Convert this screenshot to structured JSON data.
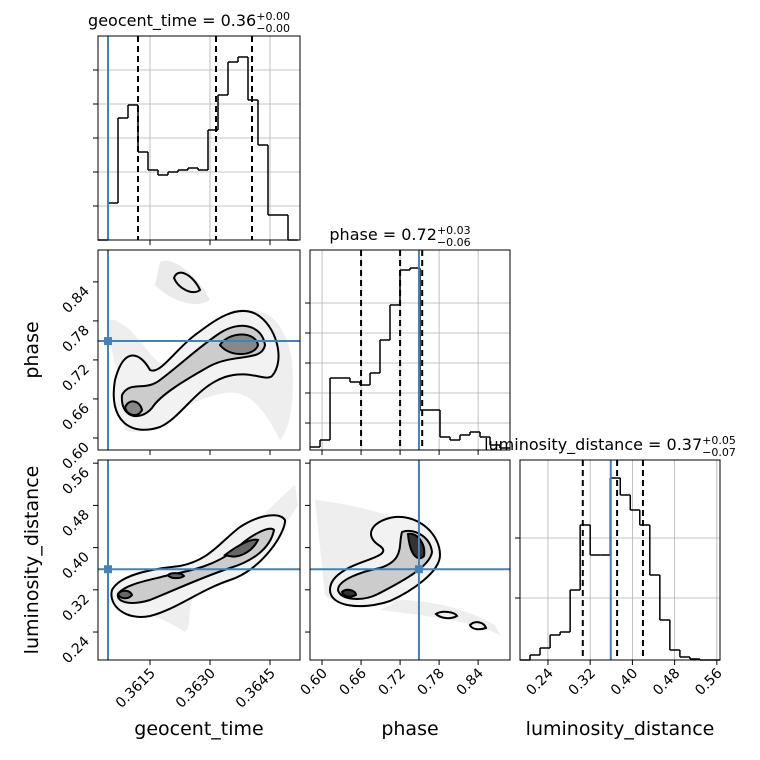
{
  "chart_data": {
    "type": "corner",
    "injection_color": "#4682b4",
    "grid": true,
    "parameters": [
      {
        "label": "geocent_time",
        "title": {
          "text": "geocent_time = 0.36",
          "plus": "+0.00",
          "minus": "−0.00"
        },
        "lim": [
          0.3602,
          0.36525
        ],
        "ticks": [
          0.3615,
          {
            "value": 0.363,
            "label": "0.3630"
          },
          0.3645
        ],
        "injection": 0.36045,
        "quantiles": [
          0.3612,
          0.36315,
          0.36405
        ],
        "hist": {
          "bins": [
            0.3602,
            0.36045,
            0.3607,
            0.36095,
            0.3612,
            0.36145,
            0.3617,
            0.36195,
            0.3622,
            0.36245,
            0.3627,
            0.36295,
            0.3632,
            0.36345,
            0.3637,
            0.36395,
            0.3642,
            0.36445,
            0.3647,
            0.36495,
            0.3652
          ],
          "counts": [
            0,
            37,
            122,
            135,
            88,
            70,
            65,
            68,
            70,
            72,
            70,
            110,
            145,
            178,
            183,
            140,
            95,
            25,
            25,
            0
          ],
          "ylim": [
            0,
            204
          ],
          "yticks": [
            34,
            68,
            102,
            136,
            170
          ]
        }
      },
      {
        "label": "phase",
        "title": {
          "text": "phase = 0.72",
          "plus": "+0.03",
          "minus": "−0.06"
        },
        "lim": [
          0.5815,
          0.889
        ],
        "ticks": [
          {
            "value": 0.6,
            "label": "0.60"
          },
          0.66,
          0.72,
          0.78,
          0.84
        ],
        "injection": 0.749,
        "quantiles": [
          0.66,
          0.72,
          0.754
        ],
        "hist": {
          "bins": [
            0.5815,
            0.5969,
            0.6123,
            0.6276,
            0.643,
            0.6584,
            0.6738,
            0.6891,
            0.7045,
            0.7199,
            0.7353,
            0.7506,
            0.766,
            0.7814,
            0.7968,
            0.8121,
            0.8275,
            0.8429,
            0.8583,
            0.8736,
            0.889
          ],
          "counts": [
            3,
            10,
            72,
            72,
            68,
            65,
            77,
            110,
            145,
            180,
            182,
            40,
            40,
            13,
            10,
            15,
            18,
            13,
            5,
            2
          ],
          "ylim": [
            0,
            200
          ],
          "yticks": [
            27,
            57,
            87,
            117,
            147
          ]
        }
      },
      {
        "label": "luminosity_distance",
        "title": {
          "text": "luminosity_distance = 0.37",
          "plus": "+0.05",
          "minus": "−0.07"
        },
        "lim": [
          0.187,
          0.566
        ],
        "ticks": [
          0.24,
          0.32,
          {
            "value": 0.4,
            "label": "0.40"
          },
          0.48,
          0.56
        ],
        "injection": 0.359,
        "quantiles": [
          0.306,
          0.371,
          0.42
        ],
        "hist": {
          "bins": [
            0.187,
            0.206,
            0.225,
            0.244,
            0.263,
            0.282,
            0.301,
            0.32,
            0.339,
            0.358,
            0.377,
            0.396,
            0.414,
            0.433,
            0.452,
            0.471,
            0.49,
            0.509,
            0.528,
            0.547,
            0.566
          ],
          "counts": [
            0,
            5,
            12,
            25,
            28,
            70,
            135,
            105,
            105,
            182,
            165,
            150,
            135,
            85,
            40,
            10,
            3,
            1,
            0,
            0
          ],
          "ylim": [
            0,
            200
          ],
          "yticks": [
            62,
            122
          ]
        }
      }
    ]
  }
}
